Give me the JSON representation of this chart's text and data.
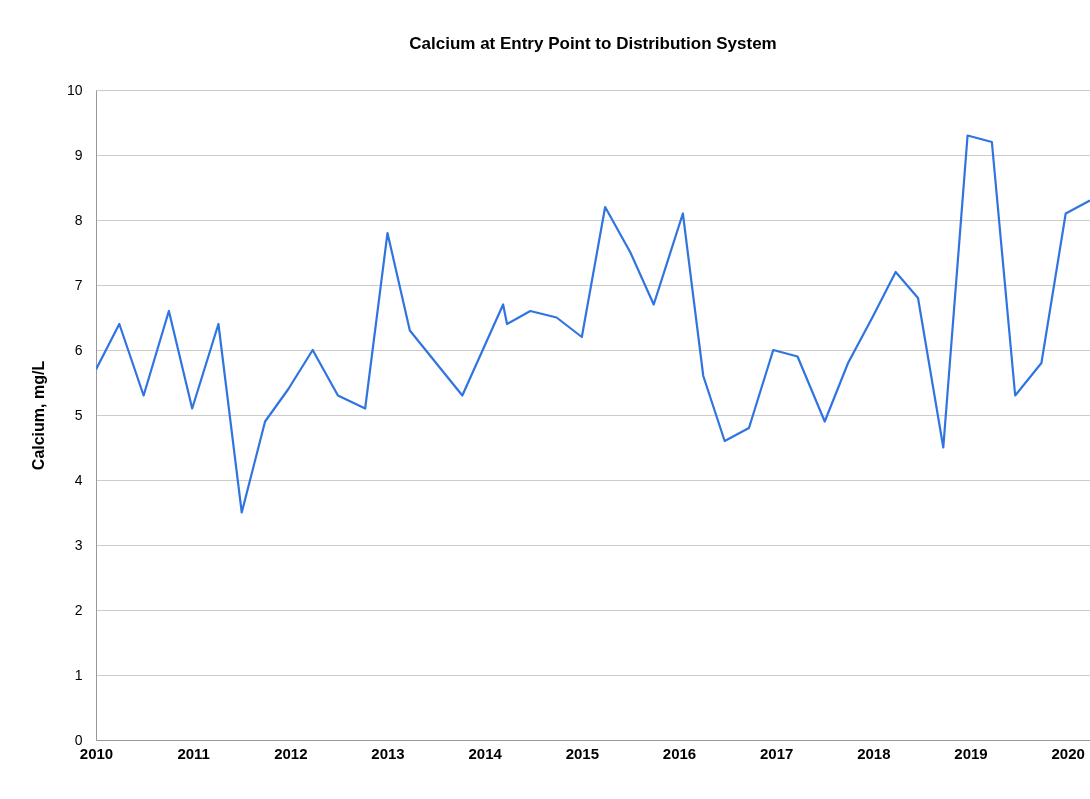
{
  "chart_data": {
    "type": "line",
    "title": "Calcium at Entry Point to Distribution System",
    "ylabel": "Calcium, mg/L",
    "x": [
      2010.0,
      2010.24,
      2010.49,
      2010.75,
      2010.99,
      2011.26,
      2011.5,
      2011.74,
      2011.98,
      2012.23,
      2012.49,
      2012.77,
      2013.0,
      2013.23,
      2013.77,
      2014.19,
      2014.23,
      2014.47,
      2014.74,
      2015.0,
      2015.24,
      2015.5,
      2015.74,
      2016.04,
      2016.25,
      2016.47,
      2016.72,
      2016.97,
      2017.22,
      2017.5,
      2017.74,
      2017.99,
      2018.23,
      2018.46,
      2018.72,
      2018.97,
      2019.22,
      2019.46,
      2019.73,
      2019.98,
      2020.23
    ],
    "series": [
      {
        "color": "#2f74e0",
        "values": [
          5.7,
          6.4,
          5.3,
          6.6,
          5.1,
          6.4,
          3.5,
          4.9,
          5.4,
          6.0,
          5.3,
          5.1,
          7.8,
          6.3,
          5.3,
          6.7,
          6.4,
          6.6,
          6.5,
          6.2,
          8.2,
          7.5,
          6.7,
          8.1,
          5.6,
          4.6,
          4.8,
          6.0,
          5.9,
          4.9,
          5.8,
          6.5,
          7.2,
          6.8,
          4.5,
          9.3,
          9.2,
          5.3,
          5.8,
          8.1,
          8.3
        ]
      }
    ],
    "xlim": [
      2010,
      2020.23
    ],
    "xticks": [
      2010,
      2011,
      2012,
      2013,
      2014,
      2015,
      2016,
      2017,
      2018,
      2019,
      2020
    ],
    "ylim": [
      0,
      10
    ],
    "yticks": [
      0,
      1,
      2,
      3,
      4,
      5,
      6,
      7,
      8,
      9,
      10
    ],
    "grid": "y",
    "legend": false
  }
}
